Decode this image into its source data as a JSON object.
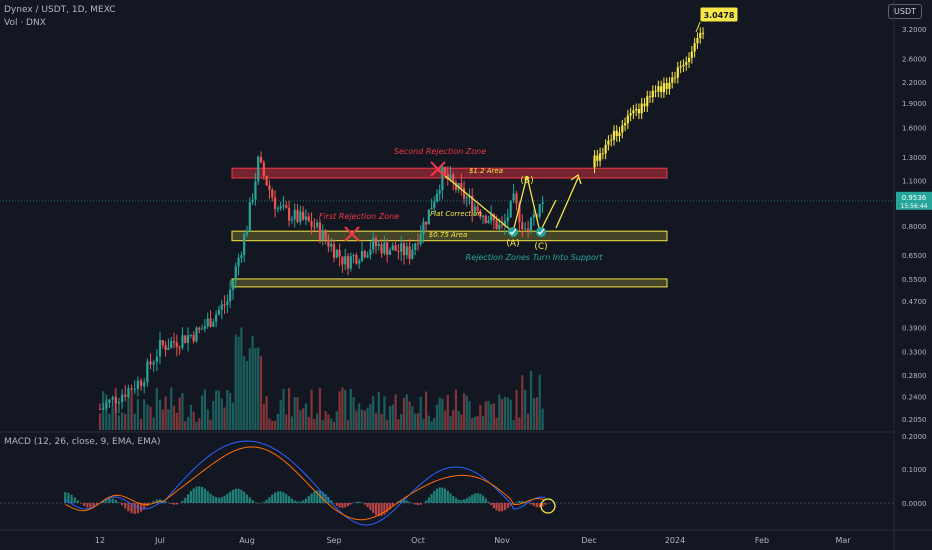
{
  "header": {
    "title": "Dynex / USDT, 1D, MEXC",
    "volume_label": "Vol · DNX",
    "currency_button": "USDT"
  },
  "macd": {
    "label": "MACD (12, 26, close, 9, EMA, EMA)",
    "axis": [
      "0.2000",
      "0.1000",
      "0.0000"
    ],
    "colors": {
      "macd_line": "#2962ff",
      "signal_line": "#ff6d00",
      "hist_pos": "#26a69a",
      "hist_neg": "#ef5350"
    }
  },
  "price_axis": {
    "ticks": [
      "3.2000",
      "2.6000",
      "2.2000",
      "1.9000",
      "1.6000",
      "1.3000",
      "1.1000",
      "0.9536",
      "0.8000",
      "0.6500",
      "0.5500",
      "0.4700",
      "0.3900",
      "0.3300",
      "0.2800",
      "0.2400",
      "0.2050"
    ],
    "current_price": "0.9536",
    "countdown": "15:56:44",
    "target_price": "3.0478"
  },
  "time_axis": [
    "12",
    "Jul",
    "Aug",
    "Sep",
    "Oct",
    "Nov",
    "Dec",
    "2024",
    "Feb",
    "Mar"
  ],
  "annotations": {
    "second_rejection": "Second Rejection Zone",
    "first_rejection": "First Rejection Zone",
    "area_top": "$1.2 Area",
    "area_mid": "$0.75 Area",
    "flat_correction": "Flat Correction",
    "wave_a": "(A)",
    "wave_b": "(B)",
    "wave_c": "(C)",
    "support_note": "Rejection Zones Turn Into Support"
  },
  "colors": {
    "background": "#131722",
    "up": "#26a69a",
    "down": "#ef5350",
    "projection": "#f7e645",
    "zone_red": "#f23645",
    "zone_yellow": "#f7e645",
    "current_price_bg": "#26a69a"
  },
  "chart_data": {
    "type": "candlestick",
    "symbol": "DNX/USDT",
    "timeframe": "1D",
    "x_range": [
      "Jun 2023",
      "Mar 2024"
    ],
    "y_scale": "log",
    "ylim": [
      0.2,
      3.3
    ],
    "series": [
      {
        "name": "price",
        "approx_path": [
          {
            "date": "Jun 12",
            "close": 0.22
          },
          {
            "date": "Jun 25",
            "close": 0.27
          },
          {
            "date": "Jul 1",
            "close": 0.34
          },
          {
            "date": "Jul 15",
            "close": 0.38
          },
          {
            "date": "Jul 25",
            "close": 0.47
          },
          {
            "date": "Aug 1",
            "close": 0.8
          },
          {
            "date": "Aug 5",
            "close": 1.25
          },
          {
            "date": "Aug 12",
            "close": 0.9
          },
          {
            "date": "Aug 25",
            "close": 0.8
          },
          {
            "date": "Sep 5",
            "close": 0.62
          },
          {
            "date": "Sep 15",
            "close": 0.7
          },
          {
            "date": "Sep 28",
            "close": 0.66
          },
          {
            "date": "Oct 5",
            "close": 0.88
          },
          {
            "date": "Oct 10",
            "close": 1.15
          },
          {
            "date": "Oct 20",
            "close": 0.95
          },
          {
            "date": "Nov 1",
            "close": 0.78
          },
          {
            "date": "Nov 5",
            "close": 0.95
          },
          {
            "date": "Nov 9",
            "close": 0.78
          },
          {
            "date": "Nov 15",
            "close": 0.9536
          }
        ]
      },
      {
        "name": "projection",
        "approx_path": [
          {
            "date": "Dec 1",
            "close": 1.22
          },
          {
            "date": "Dec 15",
            "close": 1.7
          },
          {
            "date": "Jan 1",
            "close": 2.3
          },
          {
            "date": "Jan 10",
            "close": 3.0478
          }
        ]
      }
    ],
    "zones": [
      {
        "label": "$1.2 Area",
        "low": 1.12,
        "high": 1.2,
        "color": "red"
      },
      {
        "label": "$0.75 Area",
        "low": 0.72,
        "high": 0.77,
        "color": "yellow"
      },
      {
        "label": "",
        "low": 0.52,
        "high": 0.55,
        "color": "yellow"
      }
    ]
  }
}
